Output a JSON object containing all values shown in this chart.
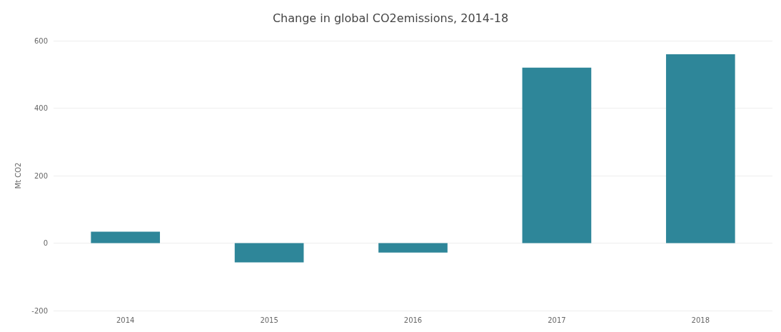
{
  "chart_data": {
    "type": "bar",
    "title": "Change in global CO2emissions, 2014-18",
    "ylabel": "Mt CO2",
    "categories": [
      "2014",
      "2015",
      "2016",
      "2017",
      "2018"
    ],
    "values": [
      34,
      -57,
      -28,
      520,
      560
    ],
    "color": "#2e8699",
    "ylim": [
      -200,
      600
    ],
    "yticks": [
      -200,
      0,
      200,
      400,
      600
    ],
    "grid": "y"
  }
}
